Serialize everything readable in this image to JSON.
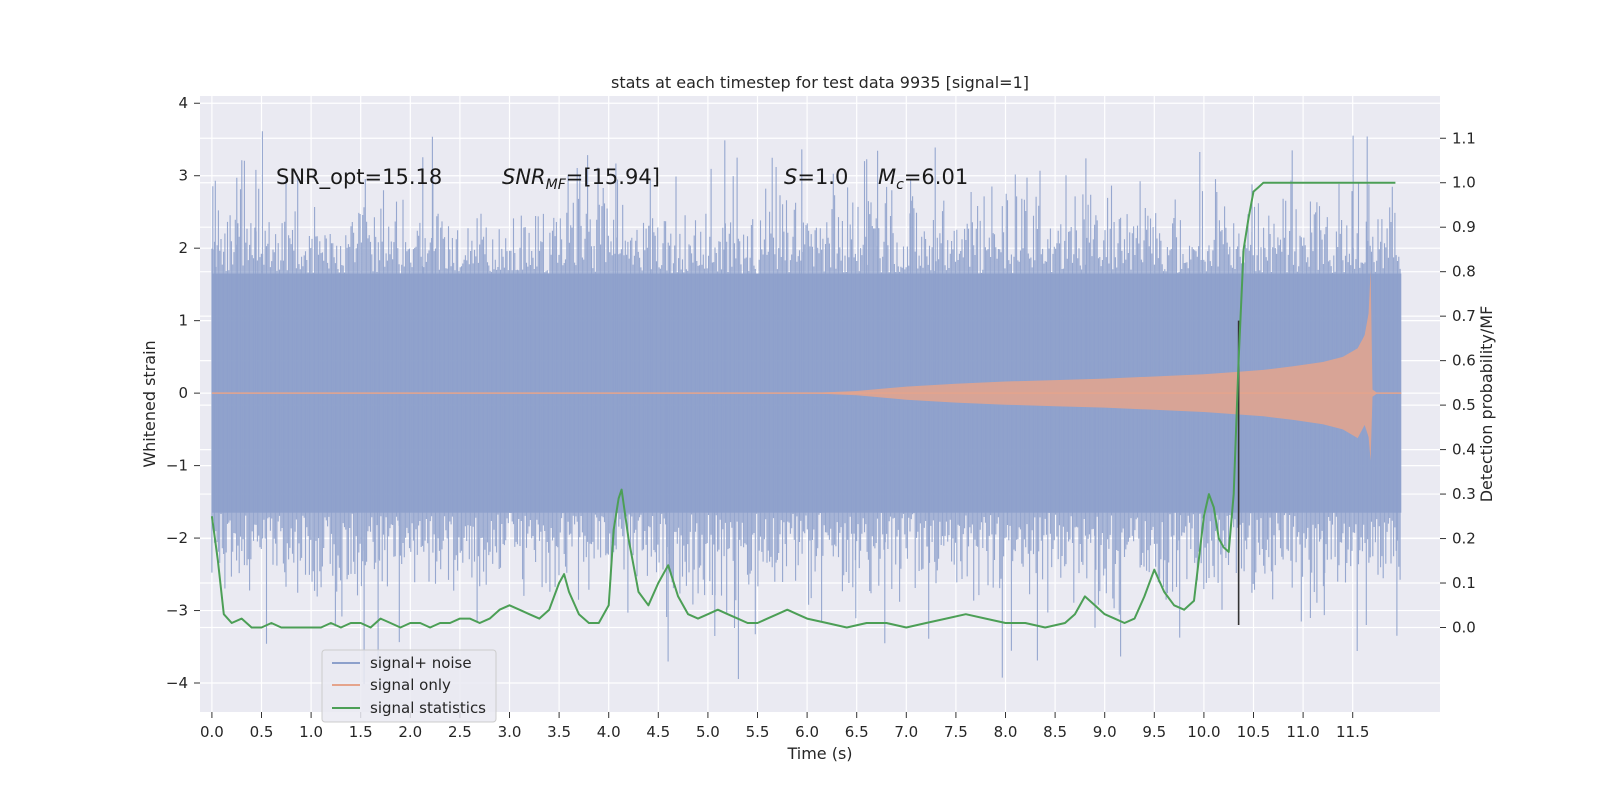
{
  "chart_data": {
    "type": "line",
    "title": "stats at each timestep for test data 9935 [signal=1]",
    "xlabel": "Time (s)",
    "ylabel_left": "Whitened strain",
    "ylabel_right": "Detection probability/MF",
    "xlim": [
      -0.12,
      12.38
    ],
    "ylim_left": [
      -4.4,
      4.1
    ],
    "ylim_right": [
      -0.19,
      1.195
    ],
    "x_ticks": [
      "0.0",
      "0.5",
      "1.0",
      "1.5",
      "2.0",
      "2.5",
      "3.0",
      "3.5",
      "4.0",
      "4.5",
      "5.0",
      "5.5",
      "6.0",
      "6.5",
      "7.0",
      "7.5",
      "8.0",
      "8.5",
      "9.0",
      "9.5",
      "10.0",
      "10.5",
      "11.0",
      "11.5"
    ],
    "y_left_ticks": [
      "4",
      "3",
      "2",
      "1",
      "0",
      "−1",
      "−2",
      "−3",
      "−4"
    ],
    "y_right_ticks": [
      "1.1",
      "1.0",
      "0.9",
      "0.8",
      "0.7",
      "0.6",
      "0.5",
      "0.4",
      "0.3",
      "0.2",
      "0.1",
      "0.0"
    ],
    "grid": true,
    "legend_position": "lower-left",
    "colors": {
      "signal_noise": "#8da0cb",
      "signal_only": "#e5a48c",
      "statistics": "#4c9f56",
      "marker": "#333333",
      "background": "#eaeaf2",
      "grid": "#ffffff"
    },
    "annotations": {
      "snr_opt": "SNR_opt=15.18",
      "snr_mf_base": "SNR",
      "snr_mf_sub": "MF",
      "snr_mf_rest": "=[15.94]",
      "s_label": "S",
      "s_value": "=1.0",
      "mc_label": "M",
      "mc_sub": "c",
      "mc_value": "=6.01"
    },
    "marker_x": 10.35,
    "series": [
      {
        "name": "signal+ noise",
        "kind": "noise-band",
        "x_range": [
          0.0,
          11.99
        ],
        "inner_amplitude": 1.65,
        "peak_max": 3.62,
        "peak_min": -4.07
      },
      {
        "name": "signal only",
        "kind": "chirp-envelope",
        "x": [
          0.0,
          6.0,
          6.5,
          7.0,
          7.5,
          8.0,
          8.5,
          9.0,
          9.5,
          10.0,
          10.3,
          10.6,
          10.9,
          11.2,
          11.4,
          11.55,
          11.62,
          11.66,
          11.68,
          11.7,
          11.75,
          11.99
        ],
        "envelope": [
          0.0,
          0.0,
          0.03,
          0.09,
          0.13,
          0.16,
          0.18,
          0.2,
          0.23,
          0.26,
          0.29,
          0.32,
          0.37,
          0.43,
          0.5,
          0.62,
          0.8,
          1.1,
          1.7,
          0.05,
          0.0,
          0.0
        ]
      },
      {
        "name": "signal statistics",
        "kind": "line",
        "x": [
          0.0,
          0.06,
          0.12,
          0.2,
          0.3,
          0.4,
          0.5,
          0.6,
          0.7,
          0.8,
          0.9,
          1.0,
          1.1,
          1.2,
          1.3,
          1.4,
          1.5,
          1.6,
          1.7,
          1.8,
          1.9,
          2.0,
          2.1,
          2.2,
          2.3,
          2.4,
          2.5,
          2.6,
          2.7,
          2.8,
          2.9,
          3.0,
          3.1,
          3.2,
          3.3,
          3.4,
          3.5,
          3.55,
          3.6,
          3.7,
          3.8,
          3.9,
          4.0,
          4.05,
          4.1,
          4.13,
          4.2,
          4.3,
          4.4,
          4.5,
          4.6,
          4.7,
          4.8,
          4.9,
          5.0,
          5.1,
          5.2,
          5.3,
          5.4,
          5.5,
          5.6,
          5.7,
          5.8,
          5.9,
          6.0,
          6.2,
          6.4,
          6.6,
          6.8,
          7.0,
          7.2,
          7.4,
          7.6,
          7.8,
          8.0,
          8.2,
          8.4,
          8.6,
          8.7,
          8.8,
          8.9,
          9.0,
          9.1,
          9.2,
          9.3,
          9.4,
          9.5,
          9.6,
          9.7,
          9.8,
          9.9,
          10.0,
          10.05,
          10.1,
          10.15,
          10.2,
          10.25,
          10.3,
          10.35,
          10.4,
          10.45,
          10.5,
          10.55,
          10.6,
          10.7,
          11.0,
          11.5,
          11.93
        ],
        "y": [
          0.25,
          0.15,
          0.03,
          0.01,
          0.02,
          0.0,
          0.0,
          0.01,
          0.0,
          0.0,
          0.0,
          0.0,
          0.0,
          0.01,
          0.0,
          0.01,
          0.01,
          0.0,
          0.02,
          0.01,
          0.0,
          0.01,
          0.01,
          0.0,
          0.01,
          0.01,
          0.02,
          0.02,
          0.01,
          0.02,
          0.04,
          0.05,
          0.04,
          0.03,
          0.02,
          0.04,
          0.1,
          0.12,
          0.08,
          0.03,
          0.01,
          0.01,
          0.05,
          0.22,
          0.29,
          0.31,
          0.2,
          0.08,
          0.05,
          0.1,
          0.14,
          0.07,
          0.03,
          0.02,
          0.03,
          0.04,
          0.03,
          0.02,
          0.01,
          0.01,
          0.02,
          0.03,
          0.04,
          0.03,
          0.02,
          0.01,
          0.0,
          0.01,
          0.01,
          0.0,
          0.01,
          0.02,
          0.03,
          0.02,
          0.01,
          0.01,
          0.0,
          0.01,
          0.03,
          0.07,
          0.05,
          0.03,
          0.02,
          0.01,
          0.02,
          0.07,
          0.13,
          0.08,
          0.05,
          0.04,
          0.06,
          0.25,
          0.3,
          0.27,
          0.2,
          0.18,
          0.17,
          0.3,
          0.6,
          0.85,
          0.92,
          0.98,
          0.99,
          1.0,
          1.0,
          1.0,
          1.0,
          1.0
        ]
      }
    ]
  }
}
